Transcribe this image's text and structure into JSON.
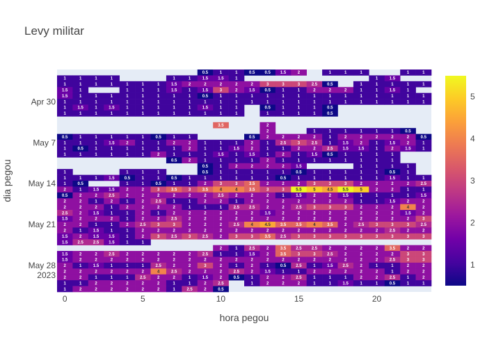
{
  "chart_data": {
    "type": "heatmap",
    "title": "Levy militar",
    "xlabel": "hora pegou",
    "ylabel": "dia pegou",
    "xlim": [
      -0.5,
      23.5
    ],
    "x_ticks": [
      "0",
      "5",
      "10",
      "15",
      "20"
    ],
    "y_ticks": [
      "Apr 30",
      "May 7",
      "May 14",
      "May 21",
      "May 28\n2023"
    ],
    "colorbar": {
      "range": [
        0.5,
        5.5
      ],
      "ticks": [
        "1",
        "2",
        "3",
        "4",
        "5"
      ]
    },
    "colorscale": [
      "#0d0887",
      "#46039f",
      "#7201a8",
      "#9c179e",
      "#bd3786",
      "#d8576b",
      "#ed7953",
      "#fb9f3a",
      "#fdca26",
      "#f0f921"
    ],
    "rows": [
      "0,0,0,0,0,0,0,0,0,0.5,1,1,0.5,0.5,1.5,2,0,1,1,1,0,0,1,1",
      "1,1,1,1,0,0,0,1,1,1.5,1.5,1,0,0,0,0,0,0,0,0,1,1.5,0,0",
      "1,1,1,1,1,1,1,1.5,2,2,2,2,2,3,3,3,2.5,0.5,0,1,1,1,1,1",
      "1.5,1,0,0,1,1,1,1.5,1,1.5,3,2,1.5,0.5,1,1,2,2,2,1,1,1.5,1,0",
      "1.5,1,1,1,1,1,1,1,1,0.5,1,1,1,1,1,1,1,1,1,1,1,1,1,1",
      "1,1,1,1,1,1,1,1,1,1,1,1,1,1,1,1,1,1,1,1,1,1,1,1",
      "1,1.5,1,1.5,1,1,1,1,1,1.5,1,1,0,0.5,1,1,1,0.5,0,0,0,0,0,0",
      "1,1,1,1,1,1,1,1,1,1,1,1,0,1,1,1,1,0.5,0,0,0,0,0,0",
      "0,0,0,0,0,0,0,0,0,0,0,0,0,0,0,0,0,0,0,0,0,0,0,0",
      "0,0,0,0,0,0,0,0,0,0,3.5,0,0,2,0,0,0,0,0,0,0,0,0,0",
      "0,0,0,0,0,0,0,0,0,0,0,0,0,2,0,0,1,1,1,1,1,1,0.5,0",
      "0.5,1,1,1,1,1,0.5,1,1,0,0,0,0.5,2,2,2,2,1,2,2,2,2,2,0.5",
      "1,1,1,1.5,2,1,1,2,2,1,1,1,2,1,2.5,3,2.5,1,1.5,2,1,1.5,2,1",
      "1,0.5,1,1,1,1,1,1,2,1,1,1.5,2,1,1,2,2,2.5,1.5,1.5,1,2,1.5,1",
      "1,1,1,1,1,1,2,1,1,1,1.5,1,1.5,1,2,1,1.5,0.5,1,1,1,1,0,0",
      "0,0,0,0,0,0,0,0.5,2,1,1,1,1,2,1,1,1,1,1,1,1,1,0,0",
      "0,0,0,0,0,0,0,0,0,0.5,1,2,2,2,2,1.5,0,0,0,1,1,1,1,0",
      "1,0,0,0,1,1,1,0,0,0.5,1,1,1,1,1,0.5,1,1,1,1,1,0.5,1,0",
      "1,1,1,1.5,0.5,1,1,0.5,1,1,1,1,1,1,0.5,1,1,1,1,1,1,1.5,1,1",
      "1,0.5,0,0,1,1,0.5,1,1,2,3,3,3.5,2,2,2,3,3,3,2,2,2,2,2.5",
      "2,1,1.5,1.5,2,2,3,3.5,3,3.5,4,4,3.5,3,3,5.5,5,4.5,5.5,5,2,2,1,1",
      "0.5,2,2,2.5,2,2,2,2,2,2,2.5,2,2,2,1,1.5,2,2,1.5,1,1,1,1,1.5",
      "2,2,1,2,1,2,2.5,1,1,2,2,1,2,2,2,2,2,2,2,1,1,1.5,2,2",
      "2,2,2,1,2,2,2,2,1,1,1,2.5,2.5,2,2,2.5,3,3,3,2,2,2,4,2",
      "2.5,2,1.5,1,1,2,1,2,2,2,2,2,2,1.5,2,2,2,2,2,2,2,2,1.5,2",
      "1.5,2,2,2,1,2,2,2.5,2,2,2,2,2,2,2,2,2,2,2,2,2,2,2,3",
      "2,2,1,1,2,2.5,3,3,2,2,2,2.5,4,4.5,3.5,3.5,4,3.5,2,2.5,3,3,3,2.5",
      "2,1,1.5,1,1,2,2,2,2,2,2,2,2,2,2,2,2,2,2,2,2,2.5,2,2",
      "1.5,2,1.5,1.5,1,2,3,2.5,3,2.5,2,3,3,3.5,2.5,3,3,3,3,3,3,3,3,3",
      "1.5,2.5,2.5,1.5,1,1,0,0,0,0,0,0,0,0,0,0,0,0,0,0,0,0,0,0",
      "0,0,0,0,0,0,0,0,0,0,2,1,2.5,2,3.5,2.5,2.5,2,2,2,2,3.5,2,2",
      "1.5,2,2,2.5,2,2,2,2,2,2.5,1,1,1.5,2,3.5,3,3,2.5,2,2,2,2,3,3",
      "1.5,2,2,2,2,2,2,2,2,2,2,2,2,2,2,2,2,2,2,2,2,2.5,3,3",
      "2,1,1.5,1,1,1,2.5,2,2,3,2,1,2,1,0.5,2.5,1,1.5,2.5,2,1,1,2,2",
      "2,2,2,2,2,2,4,2.5,2,2,2,2.5,2,1.5,1,1,2,2,2,2,2,1,2,2",
      "2,2,1,1,1,2.5,2,2,1,1.5,2,0.5,1,2,2,2.5,1,1,1,2,2,2.5,1,2",
      "1,1,2,2,2,2,2,1,1,2,2.5,0,1,2,2,2,1,1,1.5,1,1,0.5,1,1",
      "1,2,2,2,2,2,2,1,2.5,2,0.5,0,0,0,0,0,0,0,0,0,0,0,0,0"
    ]
  }
}
